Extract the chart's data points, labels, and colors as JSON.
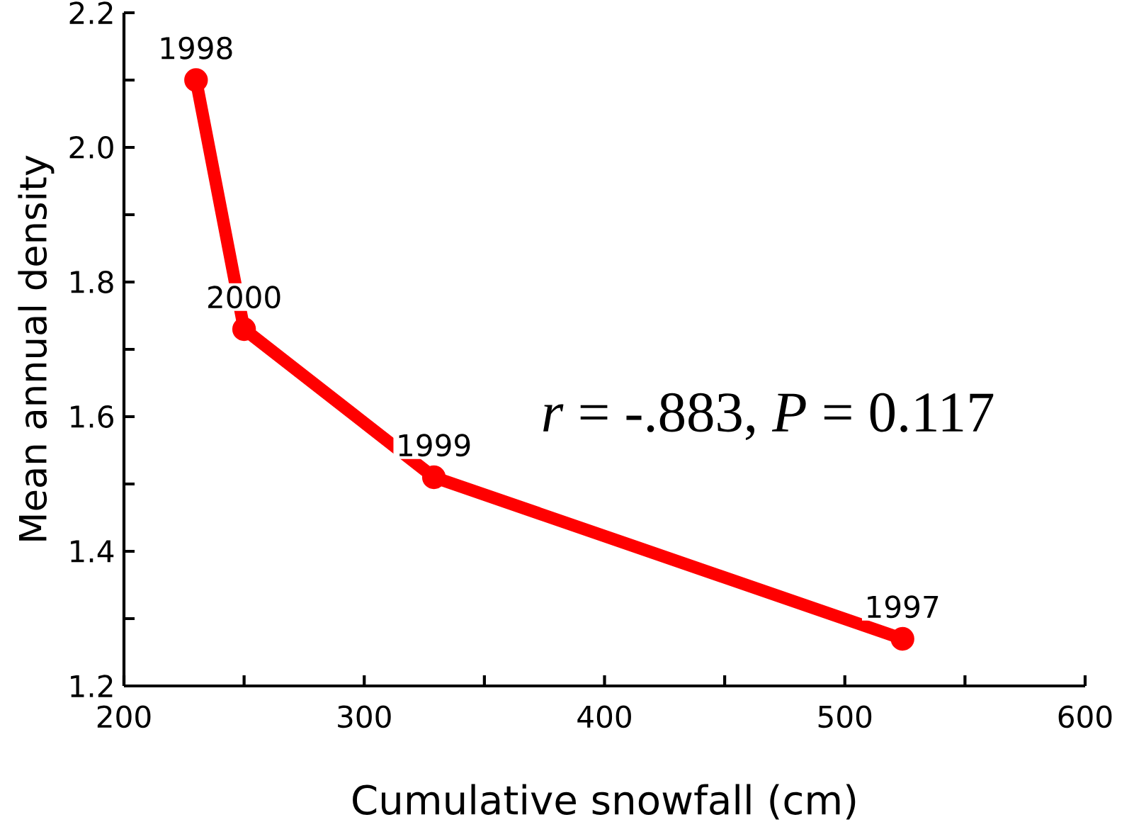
{
  "chart_data": {
    "type": "line",
    "xlabel": "Cumulative snowfall (cm)",
    "ylabel": "Mean annual density",
    "x": [
      230,
      250,
      329,
      524
    ],
    "series": [
      {
        "color": "#ff0000",
        "values": [
          2.1,
          1.73,
          1.51,
          1.27
        ]
      }
    ],
    "xlim": [
      200,
      600
    ],
    "ylim": [
      1.2,
      2.2
    ],
    "xticks": [
      200,
      {
        "value": 250,
        "label": null
      },
      300,
      {
        "value": 350,
        "label": null
      },
      400,
      {
        "value": 450,
        "label": null
      },
      500,
      {
        "value": 550,
        "label": null
      },
      600
    ],
    "yticks": [
      1.2,
      {
        "value": 1.3,
        "label": null
      },
      1.4,
      {
        "value": 1.5,
        "label": null
      },
      1.6,
      {
        "value": 1.7,
        "label": null
      },
      1.8,
      {
        "value": 1.9,
        "label": null
      },
      {
        "value": 2.0,
        "label": "2.0"
      },
      {
        "value": 2.1,
        "label": null
      },
      2.2
    ],
    "grid": false,
    "marker": "circle",
    "line_style": "solid",
    "annotations": [
      {
        "text": "1998",
        "x": 230,
        "y": 2.1
      },
      {
        "text": "2000",
        "x": 250,
        "y": 1.73
      },
      {
        "text": "1999",
        "x": 329,
        "y": 1.51
      },
      {
        "text": "1997",
        "x": 524,
        "y": 1.27
      },
      "*r* = -.883, *P* = 0.117"
    ]
  }
}
